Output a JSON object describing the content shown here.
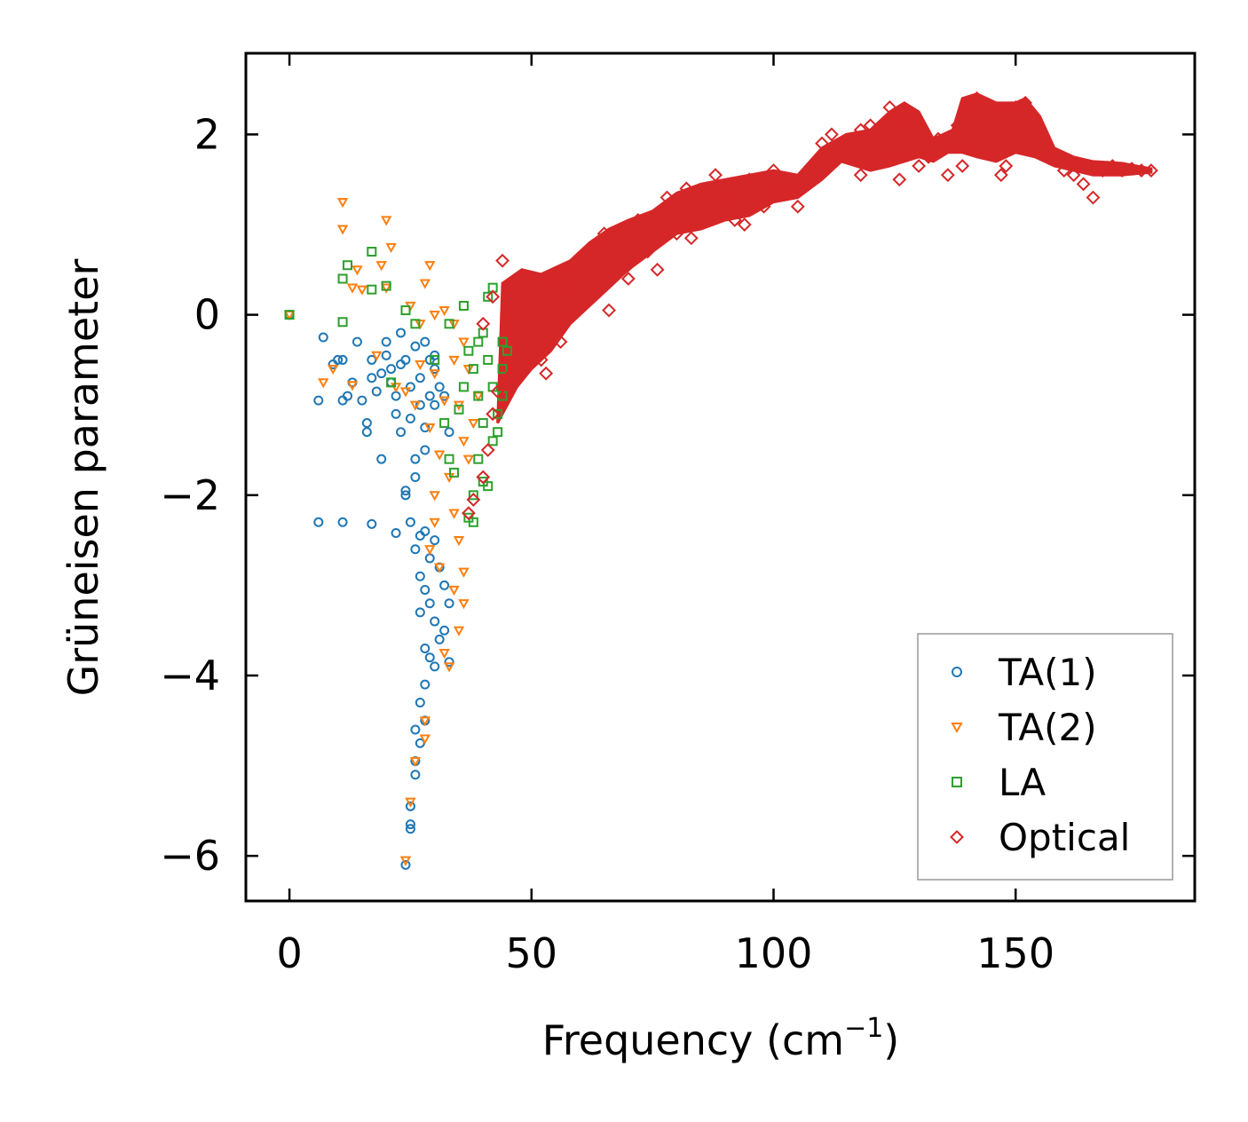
{
  "chart_data": {
    "type": "scatter",
    "xlabel": "Frequency (cm",
    "xlabel_sup": "−1",
    "xlabel_close": ")",
    "ylabel": "Grüneisen parameter",
    "xlim": [
      -9,
      187
    ],
    "ylim": [
      -6.5,
      2.9
    ],
    "xticks": [
      0,
      50,
      100,
      150
    ],
    "yticks": [
      2,
      0,
      -2,
      -4,
      -6
    ],
    "xtick_labels": [
      "0",
      "50",
      "100",
      "150"
    ],
    "ytick_labels": [
      "2",
      "0",
      "−2",
      "−4",
      "−6"
    ],
    "legend_position": "lower-right",
    "series": [
      {
        "name": "TA(1)",
        "marker": "circle",
        "color": "#1f77b4",
        "points": [
          [
            0,
            0
          ],
          [
            6,
            -0.95
          ],
          [
            7,
            -0.25
          ],
          [
            9,
            -0.55
          ],
          [
            10,
            -0.5
          ],
          [
            11,
            -0.5
          ],
          [
            11,
            -0.95
          ],
          [
            12,
            -0.9
          ],
          [
            13,
            -0.75
          ],
          [
            14,
            -0.3
          ],
          [
            15,
            -0.95
          ],
          [
            16,
            -1.2
          ],
          [
            16,
            -1.3
          ],
          [
            17,
            -0.5
          ],
          [
            17,
            -0.7
          ],
          [
            18,
            -0.85
          ],
          [
            19,
            -0.65
          ],
          [
            19,
            -1.6
          ],
          [
            20,
            -0.45
          ],
          [
            21,
            -0.75
          ],
          [
            22,
            -0.9
          ],
          [
            22,
            -1.1
          ],
          [
            23,
            -1.3
          ],
          [
            23,
            -0.55
          ],
          [
            24,
            -1.95
          ],
          [
            25,
            -0.8
          ],
          [
            25,
            -1.15
          ],
          [
            26,
            -1.6
          ],
          [
            26,
            -1.8
          ],
          [
            27,
            -0.7
          ],
          [
            27,
            -1.0
          ],
          [
            28,
            -1.25
          ],
          [
            28,
            -1.5
          ],
          [
            29,
            -0.5
          ],
          [
            29,
            -0.9
          ],
          [
            30,
            -0.6
          ],
          [
            30,
            -1.0
          ],
          [
            31,
            -0.8
          ],
          [
            32,
            -0.9
          ],
          [
            33,
            -1.3
          ],
          [
            6,
            -2.3
          ],
          [
            11,
            -2.3
          ],
          [
            17,
            -2.32
          ],
          [
            22,
            -2.42
          ],
          [
            24,
            -2.0
          ],
          [
            25,
            -2.3
          ],
          [
            26,
            -2.6
          ],
          [
            27,
            -2.45
          ],
          [
            27,
            -2.9
          ],
          [
            28,
            -2.4
          ],
          [
            28,
            -3.05
          ],
          [
            29,
            -2.7
          ],
          [
            29,
            -3.2
          ],
          [
            30,
            -2.5
          ],
          [
            30,
            -3.4
          ],
          [
            31,
            -2.8
          ],
          [
            31,
            -3.6
          ],
          [
            32,
            -3.0
          ],
          [
            32,
            -3.5
          ],
          [
            33,
            -3.2
          ],
          [
            33,
            -3.85
          ],
          [
            28,
            -3.7
          ],
          [
            27,
            -3.3
          ],
          [
            29,
            -3.8
          ],
          [
            30,
            -3.9
          ],
          [
            28,
            -4.1
          ],
          [
            27,
            -4.3
          ],
          [
            28,
            -4.5
          ],
          [
            26,
            -4.6
          ],
          [
            27,
            -4.75
          ],
          [
            26,
            -4.95
          ],
          [
            26,
            -5.1
          ],
          [
            25,
            -5.45
          ],
          [
            25,
            -5.7
          ],
          [
            25,
            -5.65
          ],
          [
            24,
            -6.1
          ],
          [
            20,
            -0.3
          ],
          [
            21,
            -0.6
          ],
          [
            23,
            -0.2
          ],
          [
            24,
            -0.5
          ],
          [
            26,
            -0.35
          ],
          [
            28,
            -0.3
          ],
          [
            30,
            -0.45
          ]
        ]
      },
      {
        "name": "TA(2)",
        "marker": "triangle-down",
        "color": "#ff7f0e",
        "points": [
          [
            0,
            0
          ],
          [
            11,
            1.25
          ],
          [
            11,
            0.95
          ],
          [
            20,
            1.05
          ],
          [
            21,
            0.75
          ],
          [
            19,
            0.55
          ],
          [
            14,
            0.5
          ],
          [
            13,
            0.3
          ],
          [
            15,
            0.28
          ],
          [
            20,
            0.3
          ],
          [
            29,
            0.55
          ],
          [
            28,
            0.35
          ],
          [
            25,
            0.1
          ],
          [
            30,
            0.0
          ],
          [
            27,
            -0.1
          ],
          [
            7,
            -0.75
          ],
          [
            9,
            -0.6
          ],
          [
            13,
            -0.78
          ],
          [
            18,
            -0.45
          ],
          [
            22,
            -0.8
          ],
          [
            24,
            -0.85
          ],
          [
            26,
            -1.0
          ],
          [
            27,
            -0.55
          ],
          [
            29,
            -1.25
          ],
          [
            30,
            -0.65
          ],
          [
            31,
            -1.55
          ],
          [
            32,
            -0.95
          ],
          [
            33,
            -1.8
          ],
          [
            34,
            -0.5
          ],
          [
            34,
            -2.2
          ],
          [
            35,
            -1.0
          ],
          [
            35,
            -2.5
          ],
          [
            36,
            -1.4
          ],
          [
            36,
            -2.85
          ],
          [
            36,
            -3.2
          ],
          [
            35,
            -3.5
          ],
          [
            34,
            -3.05
          ],
          [
            33,
            -3.9
          ],
          [
            32,
            -3.75
          ],
          [
            30,
            -2.0
          ],
          [
            30,
            -2.3
          ],
          [
            29,
            -2.6
          ],
          [
            31,
            -2.8
          ],
          [
            28,
            -4.7
          ],
          [
            28,
            -4.5
          ],
          [
            26,
            -4.95
          ],
          [
            25,
            -5.4
          ],
          [
            24,
            -6.05
          ],
          [
            37,
            -1.6
          ],
          [
            38,
            -1.2
          ],
          [
            39,
            -0.9
          ],
          [
            37,
            -0.6
          ],
          [
            36,
            -0.3
          ],
          [
            34,
            -0.1
          ],
          [
            32,
            0.05
          ]
        ]
      },
      {
        "name": "LA",
        "marker": "square",
        "color": "#2ca02c",
        "points": [
          [
            0,
            0
          ],
          [
            11,
            0.4
          ],
          [
            12,
            0.55
          ],
          [
            17,
            0.7
          ],
          [
            17,
            0.28
          ],
          [
            20,
            0.32
          ],
          [
            24,
            0.05
          ],
          [
            11,
            -0.08
          ],
          [
            21,
            -0.75
          ],
          [
            26,
            -0.1
          ],
          [
            30,
            -0.5
          ],
          [
            33,
            -0.1
          ],
          [
            36,
            0.1
          ],
          [
            37,
            -0.4
          ],
          [
            38,
            -0.6
          ],
          [
            39,
            -0.9
          ],
          [
            40,
            -1.2
          ],
          [
            41,
            -0.5
          ],
          [
            42,
            -0.8
          ],
          [
            43,
            -1.1
          ],
          [
            44,
            -0.6
          ],
          [
            45,
            -0.4
          ],
          [
            40,
            -0.2
          ],
          [
            41,
            0.2
          ],
          [
            42,
            0.3
          ],
          [
            39,
            -1.6
          ],
          [
            38,
            -2.0
          ],
          [
            37,
            -2.25
          ],
          [
            38,
            -2.3
          ],
          [
            40,
            -1.85
          ],
          [
            41,
            -1.9
          ],
          [
            43,
            -1.3
          ],
          [
            44,
            -0.9
          ],
          [
            42,
            -1.4
          ],
          [
            39,
            -0.3
          ],
          [
            36,
            -0.8
          ],
          [
            35,
            -1.05
          ],
          [
            34,
            -1.75
          ],
          [
            33,
            -1.6
          ],
          [
            32,
            -1.2
          ],
          [
            44,
            -0.3
          ]
        ]
      },
      {
        "name": "Optical",
        "marker": "diamond",
        "color": "#d62728",
        "points": [
          [
            37,
            -2.2
          ],
          [
            38,
            -2.05
          ],
          [
            40,
            -1.8
          ],
          [
            41,
            -1.5
          ],
          [
            42,
            -1.1
          ],
          [
            43,
            -0.85
          ],
          [
            45,
            -0.7
          ],
          [
            40,
            -0.1
          ],
          [
            42,
            0.2
          ],
          [
            44,
            0.6
          ],
          [
            46,
            0.3
          ],
          [
            48,
            -0.2
          ],
          [
            50,
            -0.4
          ],
          [
            52,
            -0.5
          ],
          [
            54,
            -0.1
          ],
          [
            55,
            0.4
          ],
          [
            58,
            0.3
          ],
          [
            60,
            0.55
          ],
          [
            62,
            0.7
          ],
          [
            64,
            0.5
          ],
          [
            65,
            0.9
          ],
          [
            66,
            0.05
          ],
          [
            68,
            0.85
          ],
          [
            70,
            0.4
          ],
          [
            72,
            1.05
          ],
          [
            74,
            0.7
          ],
          [
            75,
            0.95
          ],
          [
            78,
            1.3
          ],
          [
            80,
            0.9
          ],
          [
            82,
            1.4
          ],
          [
            85,
            1.2
          ],
          [
            88,
            1.55
          ],
          [
            90,
            1.3
          ],
          [
            92,
            1.05
          ],
          [
            95,
            1.5
          ],
          [
            98,
            1.2
          ],
          [
            100,
            1.6
          ],
          [
            102,
            1.4
          ],
          [
            105,
            1.2
          ],
          [
            108,
            1.6
          ],
          [
            110,
            1.9
          ],
          [
            112,
            2.0
          ],
          [
            115,
            1.8
          ],
          [
            118,
            2.05
          ],
          [
            120,
            2.1
          ],
          [
            122,
            1.7
          ],
          [
            124,
            2.3
          ],
          [
            126,
            2.2
          ],
          [
            128,
            2.25
          ],
          [
            130,
            1.65
          ],
          [
            132,
            1.75
          ],
          [
            134,
            1.95
          ],
          [
            136,
            1.55
          ],
          [
            138,
            2.1
          ],
          [
            140,
            2.3
          ],
          [
            142,
            2.4
          ],
          [
            144,
            1.9
          ],
          [
            146,
            2.15
          ],
          [
            148,
            1.65
          ],
          [
            150,
            2.3
          ],
          [
            152,
            2.35
          ],
          [
            154,
            2.1
          ],
          [
            156,
            1.8
          ],
          [
            158,
            1.75
          ],
          [
            160,
            1.6
          ],
          [
            162,
            1.55
          ],
          [
            164,
            1.45
          ],
          [
            166,
            1.3
          ],
          [
            168,
            1.6
          ],
          [
            170,
            1.65
          ],
          [
            172,
            1.6
          ],
          [
            174,
            1.62
          ],
          [
            176,
            1.6
          ],
          [
            178,
            1.6
          ],
          [
            70,
            0.55
          ],
          [
            62,
            0.25
          ],
          [
            56,
            -0.3
          ],
          [
            53,
            -0.65
          ],
          [
            76,
            0.5
          ],
          [
            83,
            0.85
          ],
          [
            94,
            1.0
          ],
          [
            104,
            1.35
          ],
          [
            118,
            1.55
          ],
          [
            126,
            1.5
          ],
          [
            139,
            1.65
          ],
          [
            147,
            1.55
          ]
        ]
      }
    ]
  }
}
